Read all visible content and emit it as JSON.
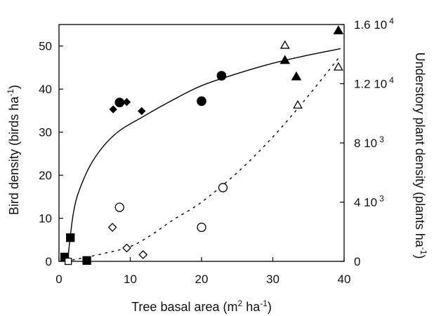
{
  "chart_data": {
    "type": "scatter",
    "title": "",
    "x_axis": {
      "label_main": "Tree basal area (m",
      "label_sup1": "2",
      "label_mid": " ha",
      "label_sup2": "-1",
      "label_end": ")",
      "range": [
        0,
        40
      ],
      "ticks": [
        "0",
        "10",
        "20",
        "30",
        "40"
      ],
      "tick_values": [
        0,
        10,
        20,
        30,
        40
      ]
    },
    "y_left": {
      "label_main": "Bird density (birds ha",
      "label_sup": "-1",
      "label_end": ")",
      "range": [
        0,
        55
      ],
      "ticks": [
        "0",
        "10",
        "20",
        "30",
        "40",
        "50"
      ],
      "tick_values": [
        0,
        10,
        20,
        30,
        40,
        50
      ]
    },
    "y_right": {
      "label_main": "Understory plant density (plants  ha",
      "label_sup": "-1",
      "label_end": ")",
      "range": [
        0,
        16000
      ],
      "ticks": [
        {
          "mant": "0",
          "exp": ""
        },
        {
          "mant": "4 10",
          "exp": "3"
        },
        {
          "mant": "8 10",
          "exp": "3"
        },
        {
          "mant": "1.2 10",
          "exp": "4"
        },
        {
          "mant": "1.6 10",
          "exp": "4"
        }
      ],
      "tick_values": [
        0,
        4000,
        8000,
        12000,
        16000
      ]
    },
    "series": [
      {
        "marker": "filled-square",
        "axis": "left",
        "points": [
          [
            0.8,
            1.0
          ],
          [
            1.6,
            5.5
          ],
          [
            3.9,
            0.2
          ]
        ]
      },
      {
        "marker": "filled-diamond",
        "axis": "left",
        "points": [
          [
            7.6,
            35.3
          ],
          [
            9.5,
            37.0
          ],
          [
            11.6,
            34.9
          ]
        ]
      },
      {
        "marker": "filled-circle",
        "axis": "left",
        "points": [
          [
            8.5,
            36.9
          ],
          [
            20.0,
            37.2
          ],
          [
            22.8,
            43.1
          ]
        ]
      },
      {
        "marker": "filled-triangle",
        "axis": "left",
        "points": [
          [
            31.7,
            46.7
          ],
          [
            33.3,
            42.9
          ],
          [
            39.2,
            53.6
          ]
        ]
      },
      {
        "marker": "open-square",
        "axis": "right",
        "points": [
          [
            1.3,
            0
          ]
        ]
      },
      {
        "marker": "open-diamond",
        "axis": "right",
        "points": [
          [
            7.5,
            2300
          ],
          [
            9.5,
            900
          ],
          [
            11.8,
            450
          ]
        ]
      },
      {
        "marker": "open-circle",
        "axis": "right",
        "points": [
          [
            8.5,
            3650
          ],
          [
            20.0,
            2300
          ],
          [
            23.0,
            4980
          ]
        ]
      },
      {
        "marker": "open-triangle",
        "axis": "right",
        "points": [
          [
            31.7,
            14600
          ],
          [
            33.5,
            10560
          ],
          [
            39.2,
            13130
          ]
        ]
      }
    ],
    "fits": [
      {
        "style": "solid",
        "axis": "left",
        "points": [
          [
            1.2,
            0
          ],
          [
            2,
            11
          ],
          [
            3,
            17.2
          ],
          [
            5,
            24
          ],
          [
            8,
            29.7
          ],
          [
            12,
            33.8
          ],
          [
            16,
            37.5
          ],
          [
            20,
            40.8
          ],
          [
            25,
            43.6
          ],
          [
            30,
            46
          ],
          [
            35,
            47.9
          ],
          [
            39.5,
            49.4
          ]
        ]
      },
      {
        "style": "dotted",
        "axis": "right",
        "points": [
          [
            1,
            0
          ],
          [
            6,
            500
          ],
          [
            10,
            1000
          ],
          [
            13,
            1800
          ],
          [
            16,
            2800
          ],
          [
            20,
            4000
          ],
          [
            25,
            6000
          ],
          [
            30,
            8400
          ],
          [
            35,
            11200
          ],
          [
            39.5,
            13900
          ]
        ]
      }
    ]
  }
}
